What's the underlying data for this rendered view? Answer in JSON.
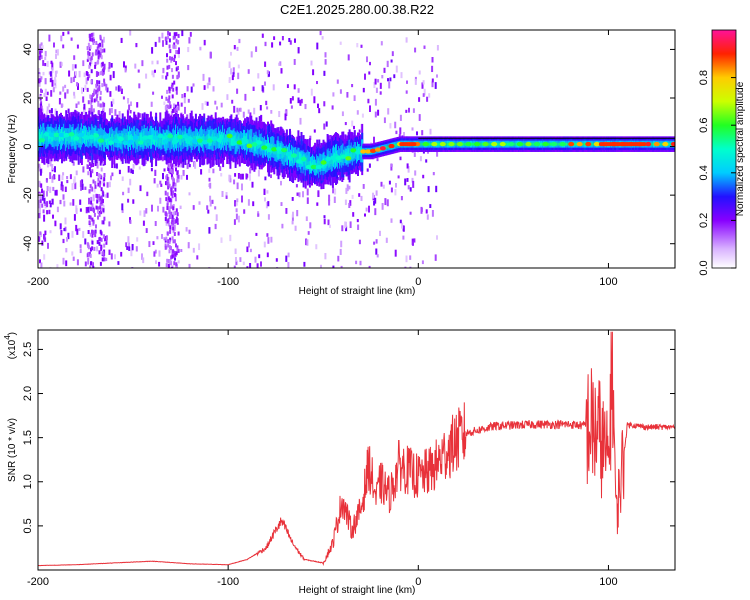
{
  "chart_data": [
    {
      "type": "heatmap",
      "title": "C2E1.2025.280.00.38.R22",
      "xlabel": "Height of straight line (km)",
      "ylabel": "Frequency (Hz)",
      "xlim": [
        -200,
        135
      ],
      "ylim": [
        -50,
        48
      ],
      "x_ticks": [
        "-200",
        "-100",
        "0",
        "100"
      ],
      "y_ticks": [
        "-40",
        "-20",
        "0",
        "20",
        "40"
      ],
      "ridge": {
        "x": [
          -200,
          -180,
          -160,
          -140,
          -120,
          -100,
          -90,
          -80,
          -70,
          -60,
          -55,
          -50,
          -45,
          -40,
          -35,
          -30,
          -25,
          -20,
          -15,
          -10,
          0,
          20,
          50,
          80,
          100,
          120,
          135
        ],
        "frequency": [
          4,
          4,
          3,
          3,
          3,
          3,
          2,
          0,
          -3,
          -6,
          -8,
          -7,
          -5,
          -4,
          -3,
          -2,
          -2,
          -1,
          0,
          1,
          1,
          1,
          1,
          1,
          1,
          1,
          1
        ]
      },
      "colorbar": {
        "label": "Normalized spectral amplitude",
        "range": [
          0.0,
          1.0
        ],
        "ticks": [
          "0.0",
          "0.2",
          "0.4",
          "0.6",
          "0.8"
        ]
      }
    },
    {
      "type": "line",
      "xlabel": "Height of straight line (km)",
      "ylabel": "SNR (10 * v/v)",
      "scale_label": "(x10",
      "scale_exponent": "4",
      "xlim": [
        -200,
        135
      ],
      "ylim": [
        0,
        2.72
      ],
      "x_ticks": [
        "-200",
        "-100",
        "0",
        "100"
      ],
      "y_ticks": [
        "0.5",
        "1.0",
        "1.5",
        "2.0",
        "2.5"
      ],
      "series": [
        {
          "name": "SNR",
          "x": [
            -200,
            -180,
            -160,
            -140,
            -120,
            -100,
            -90,
            -80,
            -75,
            -72,
            -70,
            -66,
            -60,
            -50,
            -45,
            -40,
            -35,
            -30,
            -26,
            -22,
            -20,
            -15,
            -10,
            0,
            8,
            15,
            25,
            40,
            60,
            80,
            90,
            95,
            100,
            102,
            104,
            110,
            120,
            135
          ],
          "y": [
            0.05,
            0.06,
            0.08,
            0.1,
            0.07,
            0.06,
            0.12,
            0.25,
            0.45,
            0.55,
            0.48,
            0.3,
            0.12,
            0.08,
            0.3,
            0.8,
            0.45,
            0.7,
            1.2,
            0.8,
            1.0,
            0.85,
            1.2,
            1.05,
            1.15,
            1.35,
            1.55,
            1.63,
            1.65,
            1.65,
            1.63,
            1.55,
            1.2,
            2.6,
            0.6,
            1.65,
            1.62,
            1.62
          ],
          "color": "#e8323a"
        }
      ]
    }
  ]
}
